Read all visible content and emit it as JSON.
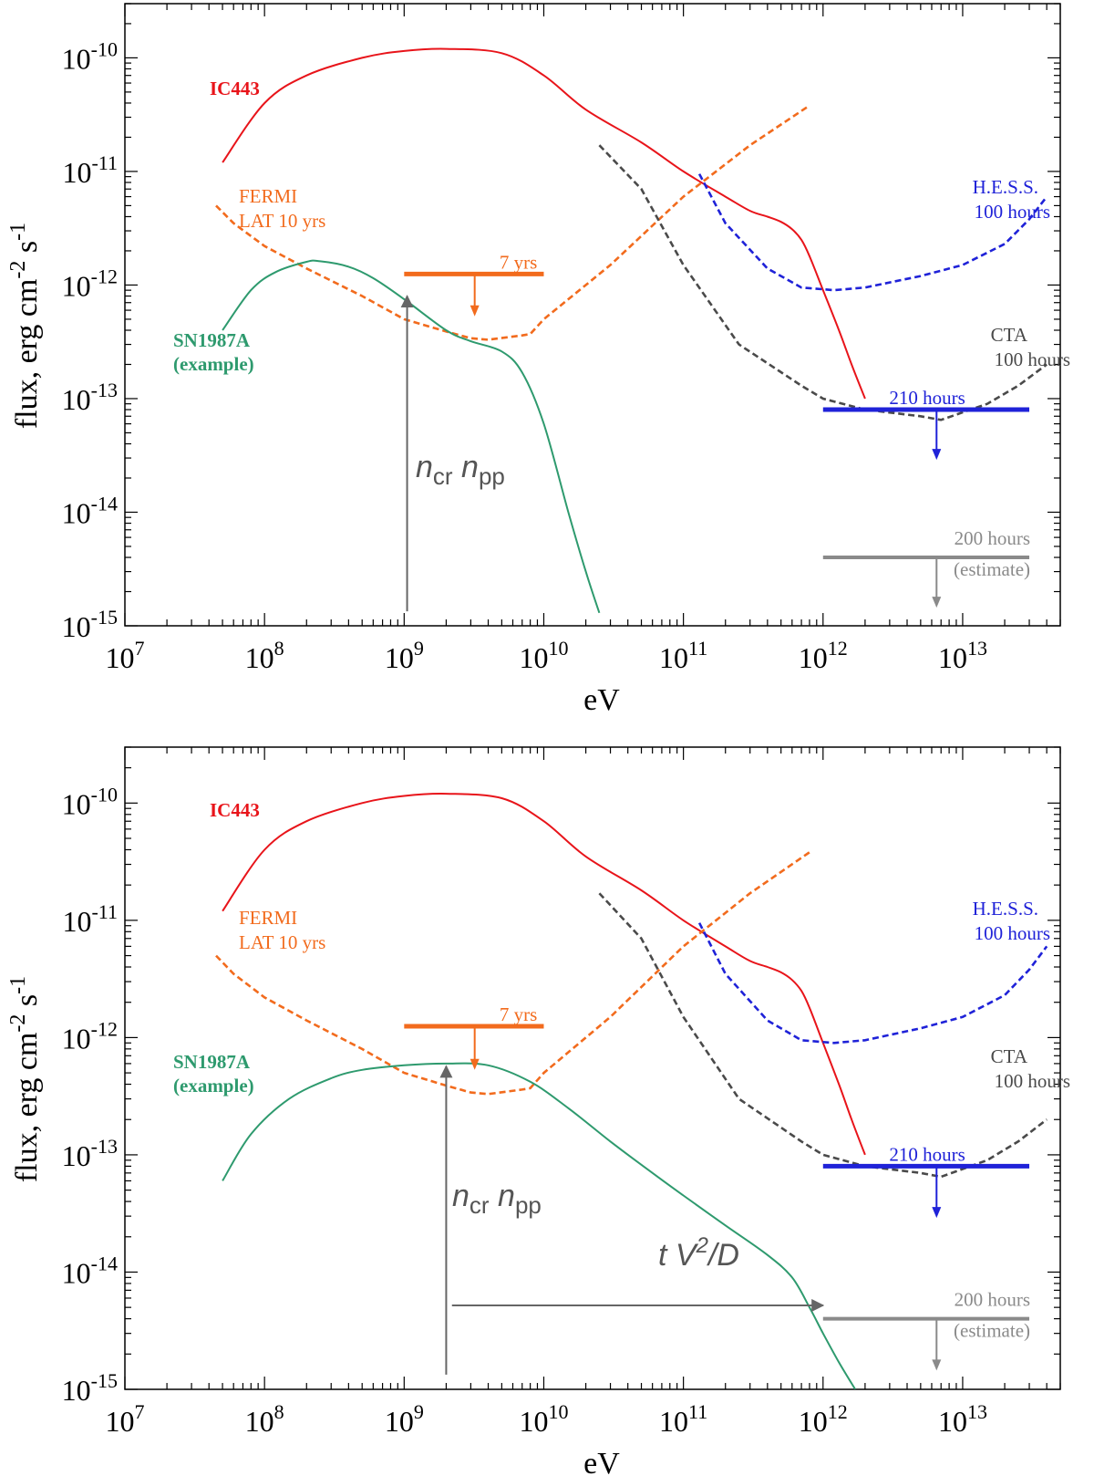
{
  "colors": {
    "ic443": "#e8141a",
    "fermi": "#f26b1d",
    "sn1987a": "#2e9a6e",
    "hess": "#1f22d8",
    "cta": "#4a4a4a",
    "estimate": "#8a8a8a",
    "arrow": "#666666"
  },
  "chart_data": [
    {
      "type": "line",
      "panel": "top",
      "xlabel": "eV",
      "ylabel": "flux, erg cm^-2 s^-1",
      "ylabel_parts": {
        "base": "flux, erg cm",
        "exp1": "-2",
        "mid": " s",
        "exp2": "-1"
      },
      "xscale": "log",
      "yscale": "log",
      "xlim": [
        10000000.0,
        50000000000000.0
      ],
      "ylim": [
        1e-15,
        3e-10
      ],
      "x_ticks": [
        {
          "base": "10",
          "exp": "7",
          "v": 10000000.0
        },
        {
          "base": "10",
          "exp": "8",
          "v": 100000000.0
        },
        {
          "base": "10",
          "exp": "9",
          "v": 1000000000.0
        },
        {
          "base": "10",
          "exp": "10",
          "v": 10000000000.0
        },
        {
          "base": "10",
          "exp": "11",
          "v": 100000000000.0
        },
        {
          "base": "10",
          "exp": "12",
          "v": 1000000000000.0
        },
        {
          "base": "10",
          "exp": "13",
          "v": 10000000000000.0
        }
      ],
      "y_ticks": [
        {
          "base": "10",
          "exp": "-10",
          "v": 1e-10
        },
        {
          "base": "10",
          "exp": "-11",
          "v": 1e-11
        },
        {
          "base": "10",
          "exp": "-12",
          "v": 1e-12
        },
        {
          "base": "10",
          "exp": "-13",
          "v": 1e-13
        },
        {
          "base": "10",
          "exp": "-14",
          "v": 1e-14
        },
        {
          "base": "10",
          "exp": "-15",
          "v": 1e-15
        }
      ],
      "series": [
        {
          "name": "IC443",
          "color": "ic443",
          "dash": false,
          "x": [
            50000000.0,
            100000000.0,
            200000000.0,
            500000000.0,
            1000000000.0,
            2000000000.0,
            5000000000.0,
            10000000000.0,
            20000000000.0,
            50000000000.0,
            100000000000.0,
            200000000000.0,
            300000000000.0,
            400000000000.0,
            500000000000.0,
            600000000000.0,
            700000000000.0,
            800000000000.0,
            1000000000000.0,
            1300000000000.0,
            1600000000000.0,
            2000000000000.0
          ],
          "y": [
            1.2e-11,
            4e-11,
            7e-11,
            1e-10,
            1.15e-10,
            1.2e-10,
            1.1e-10,
            7e-11,
            3.5e-11,
            1.8e-11,
            1e-11,
            6e-12,
            4.5e-12,
            4e-12,
            3.6e-12,
            3.1e-12,
            2.5e-12,
            1.8e-12,
            9e-13,
            4e-13,
            2e-13,
            1e-13
          ]
        },
        {
          "name": "FERMI LAT 10 yrs",
          "color": "fermi",
          "dash": true,
          "x": [
            45000000.0,
            60000000.0,
            100000000.0,
            200000000.0,
            500000000.0,
            1000000000.0,
            2000000000.0,
            3000000000.0,
            4000000000.0,
            7000000000.0,
            8000000000.0,
            10000000000.0,
            30000000000.0,
            100000000000.0,
            300000000000.0,
            800000000000.0
          ],
          "y": [
            5e-12,
            3.5e-12,
            2.2e-12,
            1.4e-12,
            8e-13,
            5e-13,
            3.9e-13,
            3.4e-13,
            3.3e-13,
            3.6e-13,
            3.7e-13,
            5e-13,
            1.5e-12,
            6e-12,
            1.7e-11,
            3.8e-11
          ]
        },
        {
          "name": "SN1987A (example)",
          "color": "sn1987a",
          "dash": false,
          "x": [
            50000000.0,
            80000000.0,
            120000000.0,
            200000000.0,
            250000000.0,
            400000000.0,
            600000000.0,
            1000000000.0,
            2000000000.0,
            3000000000.0,
            5000000000.0,
            7000000000.0,
            10000000000.0,
            15000000000.0,
            20000000000.0,
            25000000000.0
          ],
          "y": [
            4e-13,
            9e-13,
            1.3e-12,
            1.6e-12,
            1.62e-12,
            1.45e-12,
            1.15e-12,
            7.5e-13,
            4e-13,
            3.2e-13,
            2.6e-13,
            1.7e-13,
            6e-14,
            1e-14,
            3e-15,
            1.3e-15
          ]
        },
        {
          "name": "H.E.S.S. 100 hours",
          "color": "hess",
          "dash": true,
          "x": [
            130000000000.0,
            200000000000.0,
            400000000000.0,
            700000000000.0,
            1200000000000.0,
            2000000000000.0,
            5000000000000.0,
            10000000000000.0,
            20000000000000.0,
            30000000000000.0,
            40000000000000.0
          ],
          "y": [
            9.5e-12,
            3.5e-12,
            1.4e-12,
            9.5e-13,
            9e-13,
            9.5e-13,
            1.2e-12,
            1.5e-12,
            2.3e-12,
            3.8e-12,
            6e-12
          ]
        },
        {
          "name": "CTA 100 hours",
          "color": "cta",
          "dash": true,
          "x": [
            25000000000.0,
            50000000000.0,
            100000000000.0,
            250000000000.0,
            700000000000.0,
            1000000000000.0,
            2000000000000.0,
            5000000000000.0,
            7000000000000.0,
            15000000000000.0,
            25000000000000.0,
            40000000000000.0
          ],
          "y": [
            1.7e-11,
            7e-12,
            1.5e-12,
            3e-13,
            1.3e-13,
            1e-13,
            8e-14,
            7e-14,
            6.5e-14,
            9e-14,
            1.3e-13,
            2e-13
          ]
        }
      ],
      "limits": [
        {
          "label": "7 yrs",
          "color": "fermi",
          "x": [
            1000000000.0,
            10000000000.0
          ],
          "y": 1.25e-12,
          "arrow_x": 3200000000.0,
          "arrow_to": 5.5e-13,
          "width": "thick"
        },
        {
          "label": "210 hours",
          "color": "hess",
          "x": [
            1000000000000.0,
            30000000000000.0
          ],
          "y": 8e-14,
          "arrow_x": 6500000000000.0,
          "arrow_to": 3e-14,
          "width": "thick"
        },
        {
          "label": "200 hours",
          "label2": "(estimate)",
          "color": "estimate",
          "x": [
            1000000000000.0,
            30000000000000.0
          ],
          "y": 4e-15,
          "arrow_x": 6500000000000.0,
          "arrow_to": 1.5e-15,
          "width": "medium"
        }
      ],
      "arrows": [
        {
          "kind": "vertical",
          "x": 1050000000.0,
          "y_from": 1.2e-15,
          "y_to": 8e-13
        }
      ],
      "labels": [
        {
          "id": "ic443",
          "text": "IC443",
          "color": "ic443",
          "bold": true
        },
        {
          "id": "fermi1",
          "text": "FERMI",
          "color": "fermi"
        },
        {
          "id": "fermi2",
          "text": "LAT 10 yrs",
          "color": "fermi"
        },
        {
          "id": "sn1",
          "text": "SN1987A",
          "color": "sn1987a",
          "bold": true
        },
        {
          "id": "sn2",
          "text": "(example)",
          "color": "sn1987a",
          "bold": true
        },
        {
          "id": "hess1",
          "text": "H.E.S.S.",
          "color": "hess"
        },
        {
          "id": "hess2",
          "text": "100 hours",
          "color": "hess"
        },
        {
          "id": "cta1",
          "text": "CTA",
          "color": "cta"
        },
        {
          "id": "cta2",
          "text": "100 hours",
          "color": "cta"
        },
        {
          "id": "ncr",
          "text": "ncr npp",
          "parts": {
            "n1": "n",
            "s1": "cr",
            "n2": " n",
            "s2": "pp"
          }
        }
      ]
    },
    {
      "type": "line",
      "panel": "bottom",
      "xlabel": "eV",
      "ylabel": "flux, erg cm^-2 s^-1",
      "ylabel_parts": {
        "base": "flux, erg cm",
        "exp1": "-2",
        "mid": " s",
        "exp2": "-1"
      },
      "xscale": "log",
      "yscale": "log",
      "xlim": [
        10000000.0,
        50000000000000.0
      ],
      "ylim": [
        1e-15,
        3e-10
      ],
      "x_ticks": [
        {
          "base": "10",
          "exp": "7",
          "v": 10000000.0
        },
        {
          "base": "10",
          "exp": "8",
          "v": 100000000.0
        },
        {
          "base": "10",
          "exp": "9",
          "v": 1000000000.0
        },
        {
          "base": "10",
          "exp": "10",
          "v": 10000000000.0
        },
        {
          "base": "10",
          "exp": "11",
          "v": 100000000000.0
        },
        {
          "base": "10",
          "exp": "12",
          "v": 1000000000000.0
        },
        {
          "base": "10",
          "exp": "13",
          "v": 10000000000000.0
        }
      ],
      "y_ticks": [
        {
          "base": "10",
          "exp": "-10",
          "v": 1e-10
        },
        {
          "base": "10",
          "exp": "-11",
          "v": 1e-11
        },
        {
          "base": "10",
          "exp": "-12",
          "v": 1e-12
        },
        {
          "base": "10",
          "exp": "-13",
          "v": 1e-13
        },
        {
          "base": "10",
          "exp": "-14",
          "v": 1e-14
        },
        {
          "base": "10",
          "exp": "-15",
          "v": 1e-15
        }
      ],
      "series": [
        {
          "name": "IC443",
          "color": "ic443",
          "dash": false,
          "x": [
            50000000.0,
            100000000.0,
            200000000.0,
            500000000.0,
            1000000000.0,
            2000000000.0,
            5000000000.0,
            10000000000.0,
            20000000000.0,
            50000000000.0,
            100000000000.0,
            200000000000.0,
            300000000000.0,
            400000000000.0,
            500000000000.0,
            600000000000.0,
            700000000000.0,
            800000000000.0,
            1000000000000.0,
            1300000000000.0,
            1600000000000.0,
            2000000000000.0
          ],
          "y": [
            1.2e-11,
            4e-11,
            7e-11,
            1e-10,
            1.15e-10,
            1.2e-10,
            1.1e-10,
            7e-11,
            3.5e-11,
            1.8e-11,
            1e-11,
            6e-12,
            4.5e-12,
            4e-12,
            3.6e-12,
            3.1e-12,
            2.5e-12,
            1.8e-12,
            9e-13,
            4e-13,
            2e-13,
            1e-13
          ]
        },
        {
          "name": "FERMI LAT 10 yrs",
          "color": "fermi",
          "dash": true,
          "x": [
            45000000.0,
            60000000.0,
            100000000.0,
            200000000.0,
            500000000.0,
            1000000000.0,
            2000000000.0,
            3000000000.0,
            4000000000.0,
            7000000000.0,
            8000000000.0,
            10000000000.0,
            30000000000.0,
            100000000000.0,
            300000000000.0,
            800000000000.0
          ],
          "y": [
            5e-12,
            3.5e-12,
            2.2e-12,
            1.4e-12,
            8e-13,
            5e-13,
            3.9e-13,
            3.4e-13,
            3.3e-13,
            3.6e-13,
            3.7e-13,
            5e-13,
            1.5e-12,
            6e-12,
            1.7e-11,
            3.8e-11
          ]
        },
        {
          "name": "SN1987A (example)",
          "color": "sn1987a",
          "dash": false,
          "x": [
            50000000.0,
            80000000.0,
            150000000.0,
            300000000.0,
            500000000.0,
            1000000000.0,
            2000000000.0,
            4000000000.0,
            8000000000.0,
            15000000000.0,
            30000000000.0,
            60000000000.0,
            100000000000.0,
            200000000000.0,
            400000000000.0,
            600000000000.0,
            800000000000.0,
            1000000000000.0,
            1300000000000.0,
            1700000000000.0
          ],
          "y": [
            6e-14,
            1.5e-13,
            3e-13,
            4.5e-13,
            5.3e-13,
            5.8e-13,
            6e-13,
            5.8e-13,
            4.2e-13,
            2.5e-13,
            1.3e-13,
            7e-14,
            4.5e-14,
            2.5e-14,
            1.4e-14,
            9e-15,
            5e-15,
            3e-15,
            1.7e-15,
            1e-15
          ]
        },
        {
          "name": "H.E.S.S. 100 hours",
          "color": "hess",
          "dash": true,
          "x": [
            130000000000.0,
            200000000000.0,
            400000000000.0,
            700000000000.0,
            1200000000000.0,
            2000000000000.0,
            5000000000000.0,
            10000000000000.0,
            20000000000000.0,
            30000000000000.0,
            40000000000000.0
          ],
          "y": [
            9.5e-12,
            3.5e-12,
            1.4e-12,
            9.5e-13,
            9e-13,
            9.5e-13,
            1.2e-12,
            1.5e-12,
            2.3e-12,
            3.8e-12,
            6e-12
          ]
        },
        {
          "name": "CTA 100 hours",
          "color": "cta",
          "dash": true,
          "x": [
            25000000000.0,
            50000000000.0,
            100000000000.0,
            250000000000.0,
            700000000000.0,
            1000000000000.0,
            2000000000000.0,
            5000000000000.0,
            7000000000000.0,
            15000000000000.0,
            25000000000000.0,
            40000000000000.0
          ],
          "y": [
            1.7e-11,
            7e-12,
            1.5e-12,
            3e-13,
            1.3e-13,
            1e-13,
            8e-14,
            7e-14,
            6.5e-14,
            9e-14,
            1.3e-13,
            2e-13
          ]
        }
      ],
      "limits": [
        {
          "label": "7 yrs",
          "color": "fermi",
          "x": [
            1000000000.0,
            10000000000.0
          ],
          "y": 1.25e-12,
          "arrow_x": 3200000000.0,
          "arrow_to": 5.5e-13,
          "width": "thick"
        },
        {
          "label": "210 hours",
          "color": "hess",
          "x": [
            1000000000000.0,
            30000000000000.0
          ],
          "y": 8e-14,
          "arrow_x": 6500000000000.0,
          "arrow_to": 3e-14,
          "width": "thick"
        },
        {
          "label": "200 hours",
          "label2": "(estimate)",
          "color": "estimate",
          "x": [
            1000000000000.0,
            30000000000000.0
          ],
          "y": 4e-15,
          "arrow_x": 6500000000000.0,
          "arrow_to": 1.5e-15,
          "width": "medium"
        }
      ],
      "arrows": [
        {
          "kind": "vertical",
          "x": 2000000000.0,
          "y_from": 1.2e-15,
          "y_to": 5.7e-13
        },
        {
          "kind": "horizontal",
          "y": 5.2e-15,
          "x_from": 2200000000.0,
          "x_to": 1000000000000.0
        }
      ],
      "labels": [
        {
          "id": "ic443",
          "text": "IC443",
          "color": "ic443",
          "bold": true
        },
        {
          "id": "fermi1",
          "text": "FERMI",
          "color": "fermi"
        },
        {
          "id": "fermi2",
          "text": "LAT 10 yrs",
          "color": "fermi"
        },
        {
          "id": "sn1",
          "text": "SN1987A",
          "color": "sn1987a",
          "bold": true
        },
        {
          "id": "sn2",
          "text": "(example)",
          "color": "sn1987a",
          "bold": true
        },
        {
          "id": "hess1",
          "text": "H.E.S.S.",
          "color": "hess"
        },
        {
          "id": "hess2",
          "text": "100 hours",
          "color": "hess"
        },
        {
          "id": "cta1",
          "text": "CTA",
          "color": "cta"
        },
        {
          "id": "cta2",
          "text": "100 hours",
          "color": "cta"
        },
        {
          "id": "ncr",
          "text": "ncr npp",
          "parts": {
            "n1": "n",
            "s1": "cr",
            "n2": " n",
            "s2": "pp"
          }
        },
        {
          "id": "tv2d",
          "text": "t V2/D",
          "parts": {
            "t": "t V",
            "exp": "2",
            "rest": "/D"
          }
        }
      ]
    }
  ]
}
